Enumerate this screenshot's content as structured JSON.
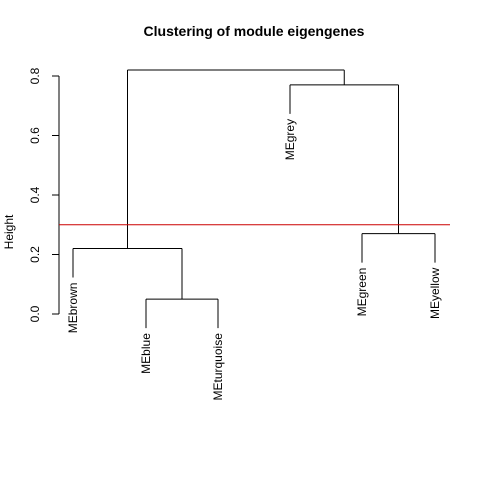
{
  "chart_data": {
    "type": "dendrogram",
    "title": "Clustering of module eigengenes",
    "ylabel": "Height",
    "xlabel": "",
    "ylim": [
      0,
      0.85
    ],
    "yticks": [
      0.0,
      0.2,
      0.4,
      0.6,
      0.8
    ],
    "ytick_labels": [
      "0.0",
      "0.2",
      "0.4",
      "0.6",
      "0.8"
    ],
    "leaves": [
      "MEbrown",
      "MEblue",
      "MEturquoise",
      "MEgrey",
      "MEgreen",
      "MEyellow"
    ],
    "merges": [
      {
        "left": "MEblue",
        "right": "MEturquoise",
        "height": 0.05
      },
      {
        "left": "MEbrown",
        "right": "MEblue+MEturquoise",
        "height": 0.22
      },
      {
        "left": "MEgreen",
        "right": "MEyellow",
        "height": 0.27
      },
      {
        "left": "MEgrey",
        "right": "MEgreen+MEyellow",
        "height": 0.77
      },
      {
        "left": "MEbrown+MEblue+MEturquoise",
        "right": "MEgrey+MEgreen+MEyellow",
        "height": 0.82
      }
    ],
    "cut_height": 0.3,
    "cut_color": "#cc0000"
  }
}
